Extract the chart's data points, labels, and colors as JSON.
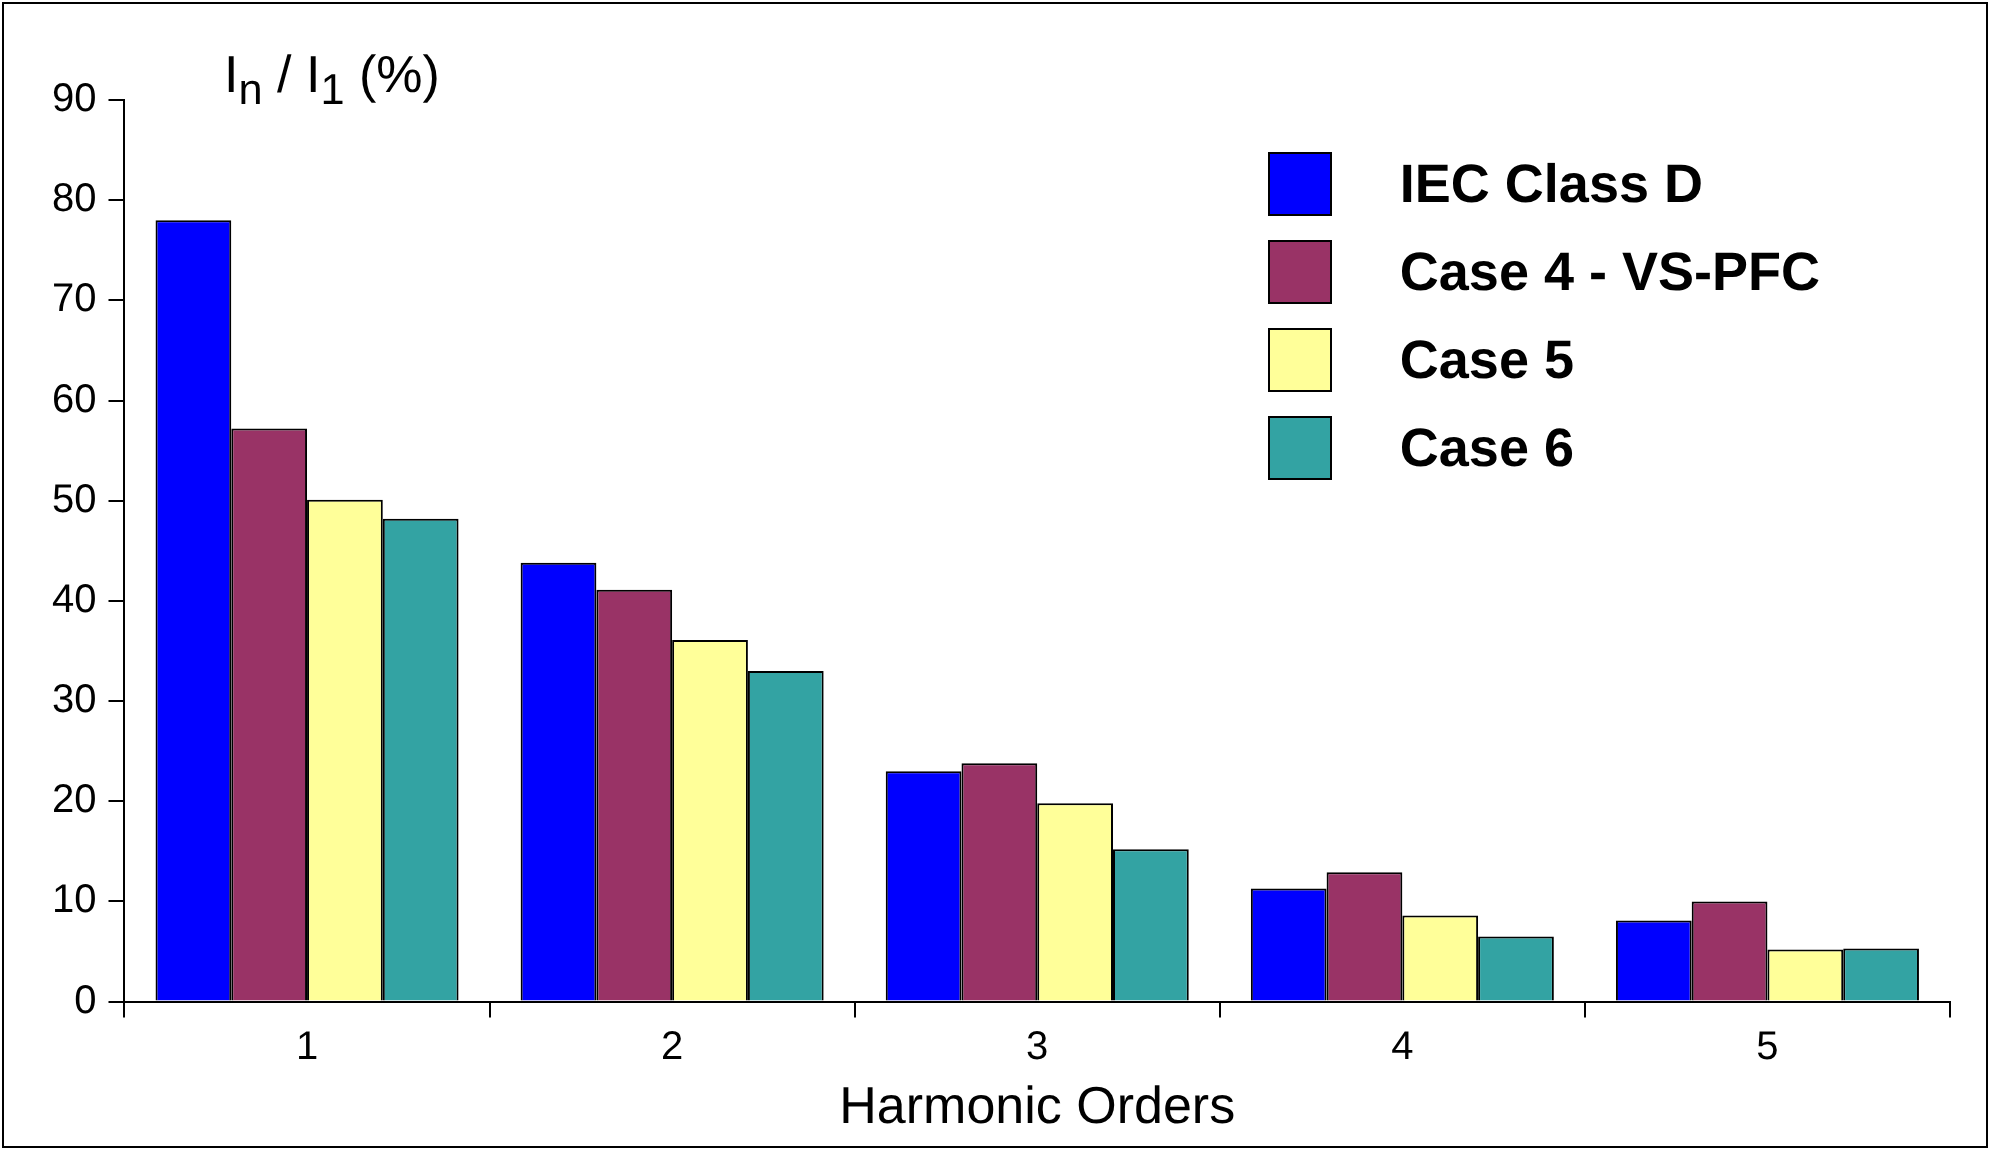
{
  "chart_data": {
    "type": "bar",
    "ylabel": "I$_{n}$ / I$_{1}$ (%)",
    "xlabel": "Harmonic Orders",
    "categories": [
      "1",
      "2",
      "3",
      "4",
      "5"
    ],
    "series": [
      {
        "name": "IEC Class D",
        "color": "#0000ff",
        "values": [
          78,
          43.8,
          23,
          11.3,
          8.1
        ]
      },
      {
        "name": "Case 4 - VS-PFC",
        "color": "#993366",
        "values": [
          57.2,
          41.1,
          23.8,
          12.9,
          10
        ]
      },
      {
        "name": "Case 5",
        "color": "#ffff99",
        "values": [
          50.1,
          36.1,
          19.8,
          8.6,
          5.2
        ]
      },
      {
        "name": "Case 6",
        "color": "#33a3a3",
        "values": [
          48.2,
          33,
          15.2,
          6.5,
          5.3
        ]
      }
    ],
    "ylim": [
      0,
      90
    ],
    "yticks": [
      0,
      10,
      20,
      30,
      40,
      50,
      60,
      70,
      80,
      90
    ],
    "grid": false,
    "legend": "top right"
  }
}
